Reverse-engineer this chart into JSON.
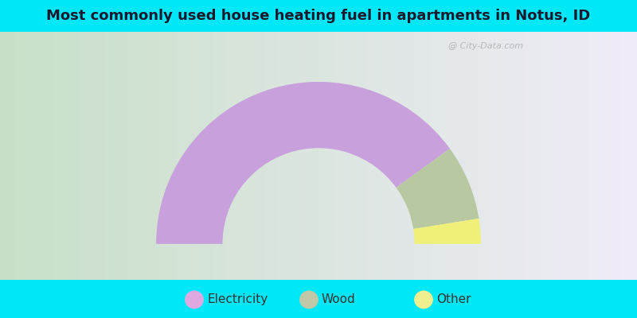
{
  "title": "Most commonly used house heating fuel in apartments in Notus, ID",
  "categories": [
    "Electricity",
    "Wood",
    "Other"
  ],
  "values": [
    80,
    15,
    5
  ],
  "colors": [
    "#c8a0dc",
    "#b8c8a0",
    "#f0f078"
  ],
  "legend_colors": [
    "#e0a8e0",
    "#c0c8a8",
    "#f0f090"
  ],
  "cyan_color": "#00e8f8",
  "title_fontsize": 13,
  "legend_fontsize": 11,
  "watermark_text": "City-Data.com",
  "outer_r": 1.15,
  "inner_r": 0.68
}
